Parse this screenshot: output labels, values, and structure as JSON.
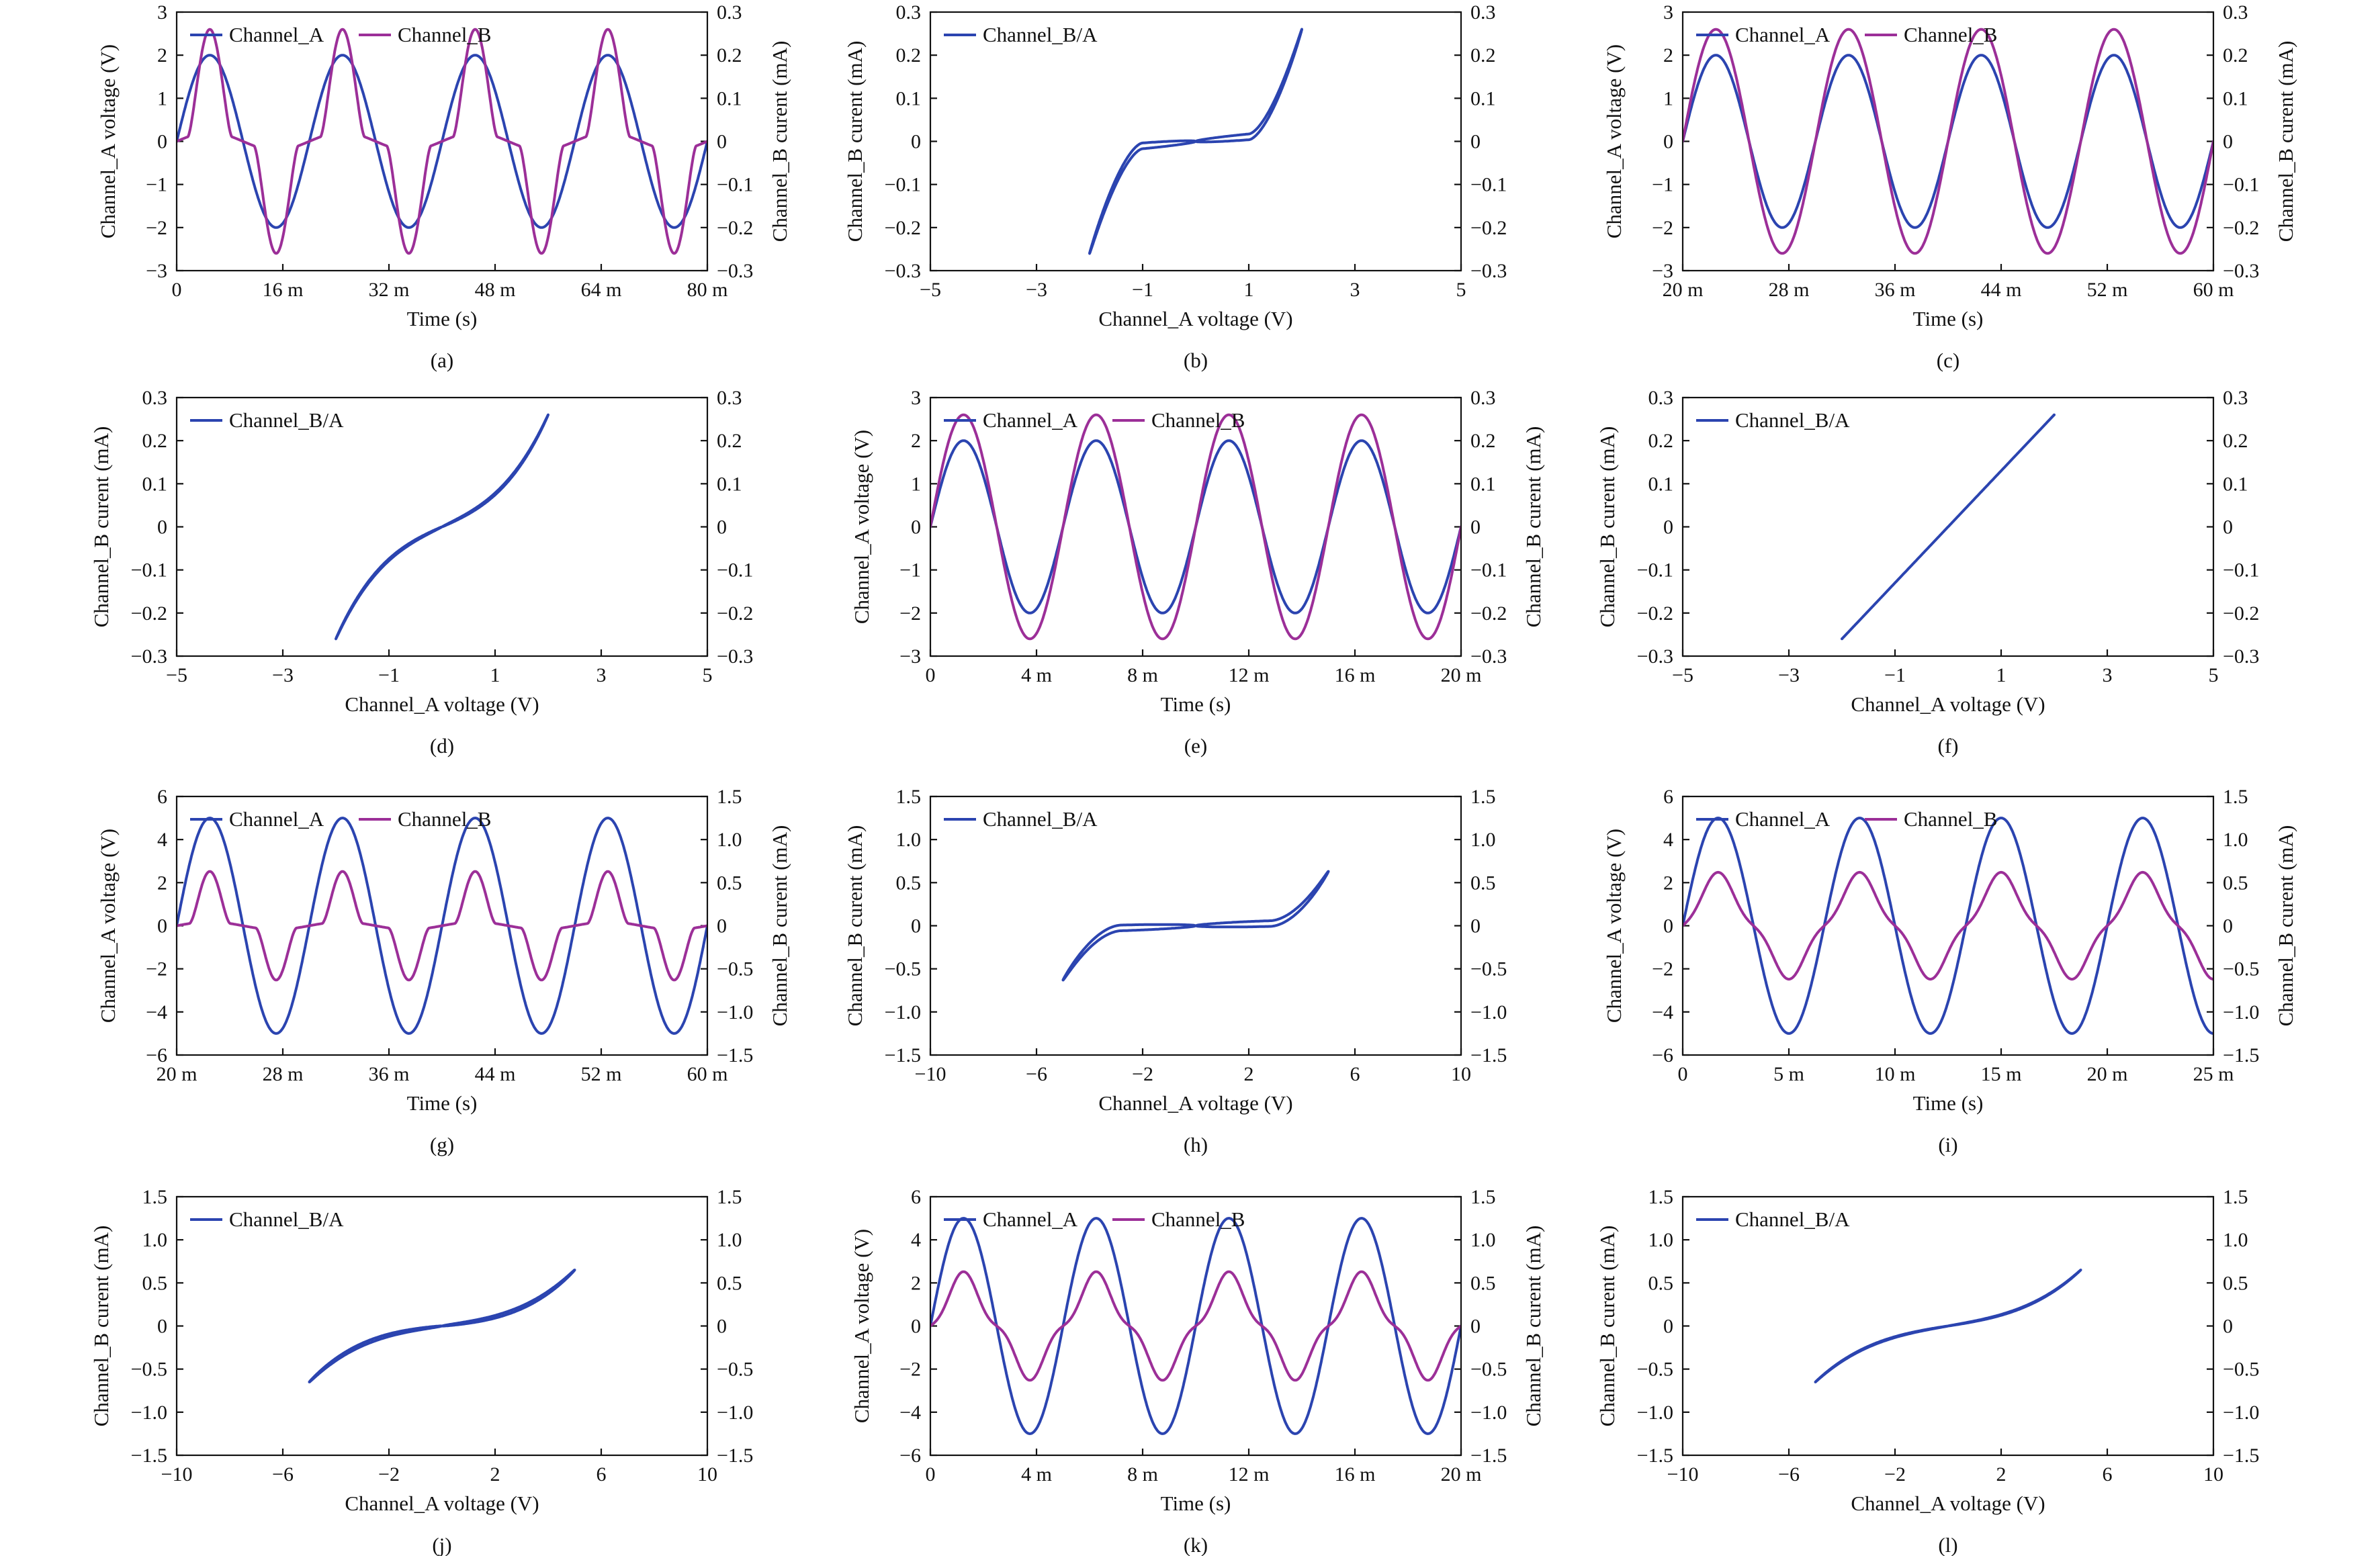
{
  "colors": {
    "channel_a": "#2b44b0",
    "channel_b": "#9c2f98"
  },
  "chart_data": [
    {
      "id": "a",
      "type": "line",
      "panel_label": "(a)",
      "xlabel": "Time (s)",
      "ylabel": "Channel_A voltage (V)",
      "y2label": "Channel_B curent (mA)",
      "xlim": [
        0,
        0.08
      ],
      "ylim": [
        -3,
        3
      ],
      "y2lim": [
        -0.3,
        0.3
      ],
      "xticks": [
        0,
        0.016,
        0.032,
        0.048,
        0.064,
        0.08
      ],
      "xtick_labels": [
        "0",
        "16 m",
        "32 m",
        "48 m",
        "64 m",
        "80 m"
      ],
      "yticks": [
        -3,
        -2,
        -1,
        0,
        1,
        2,
        3
      ],
      "ytick_labels": [
        "−3",
        "−2",
        "−1",
        "0",
        "1",
        "2",
        "3"
      ],
      "y2ticks": [
        -0.3,
        -0.2,
        -0.1,
        0,
        0.1,
        0.2,
        0.3
      ],
      "y2tick_labels": [
        "−0.3",
        "−0.2",
        "−0.1",
        "0",
        "0.1",
        "0.2",
        "0.3"
      ],
      "legend": [
        "Channel_A",
        "Channel_B"
      ],
      "series": [
        {
          "name": "Channel_A",
          "axis": "left",
          "color_key": "channel_a",
          "amplitude": 2,
          "frequency": 50,
          "phase": 0,
          "shape": "sine"
        },
        {
          "name": "Channel_B",
          "axis": "right",
          "color_key": "channel_b",
          "amplitude": 0.26,
          "frequency": 50,
          "phase": 0,
          "shape": "diode",
          "threshold": 1.0,
          "exponent": 1.6
        }
      ]
    },
    {
      "id": "b",
      "type": "xy",
      "panel_label": "(b)",
      "xlabel": "Channel_A voltage (V)",
      "ylabel": "Channel_B curent (mA)",
      "xlim": [
        -5,
        5
      ],
      "ylim": [
        -0.3,
        0.3
      ],
      "y2lim": [
        -0.3,
        0.3
      ],
      "xticks": [
        -5,
        -3,
        -1,
        1,
        3,
        5
      ],
      "xtick_labels": [
        "−5",
        "−3",
        "−1",
        "1",
        "3",
        "5"
      ],
      "yticks": [
        -0.3,
        -0.2,
        -0.1,
        0,
        0.1,
        0.2,
        0.3
      ],
      "ytick_labels": [
        "−0.3",
        "−0.2",
        "−0.1",
        "0",
        "0.1",
        "0.2",
        "0.3"
      ],
      "y2ticks": [
        -0.3,
        -0.2,
        -0.1,
        0,
        0.1,
        0.2,
        0.3
      ],
      "y2tick_labels": [
        "−0.3",
        "−0.2",
        "−0.1",
        "0",
        "0.1",
        "0.2",
        "0.3"
      ],
      "legend": [
        "Channel_B/A"
      ],
      "series": [
        {
          "name": "Channel_B/A",
          "axis": "left",
          "color_key": "channel_a",
          "vmax": 2,
          "imax": 0.26,
          "shape": "diode",
          "threshold": 1.0,
          "exponent": 1.6,
          "loop": 0.35
        }
      ]
    },
    {
      "id": "c",
      "type": "line",
      "panel_label": "(c)",
      "xlabel": "Time (s)",
      "ylabel": "Channel_A voltage (V)",
      "y2label": "Channel_B curent (mA)",
      "xlim": [
        0.02,
        0.06
      ],
      "ylim": [
        -3,
        3
      ],
      "y2lim": [
        -0.3,
        0.3
      ],
      "xticks": [
        0.02,
        0.028,
        0.036,
        0.044,
        0.052,
        0.06
      ],
      "xtick_labels": [
        "20 m",
        "28 m",
        "36 m",
        "44 m",
        "52 m",
        "60 m"
      ],
      "yticks": [
        -3,
        -2,
        -1,
        0,
        1,
        2,
        3
      ],
      "ytick_labels": [
        "−3",
        "−2",
        "−1",
        "0",
        "1",
        "2",
        "3"
      ],
      "y2ticks": [
        -0.3,
        -0.2,
        -0.1,
        0,
        0.1,
        0.2,
        0.3
      ],
      "y2tick_labels": [
        "−0.3",
        "−0.2",
        "−0.1",
        "0",
        "0.1",
        "0.2",
        "0.3"
      ],
      "legend": [
        "Channel_A",
        "Channel_B"
      ],
      "series": [
        {
          "name": "Channel_A",
          "axis": "left",
          "color_key": "channel_a",
          "amplitude": 2,
          "frequency": 100,
          "phase": 0,
          "shape": "sine"
        },
        {
          "name": "Channel_B",
          "axis": "right",
          "color_key": "channel_b",
          "amplitude": 0.26,
          "frequency": 100,
          "phase": 0,
          "shape": "sine"
        }
      ]
    },
    {
      "id": "d",
      "type": "xy",
      "panel_label": "(d)",
      "xlabel": "Channel_A voltage (V)",
      "ylabel": "Channel_B curent (mA)",
      "xlim": [
        -5,
        5
      ],
      "ylim": [
        -0.3,
        0.3
      ],
      "y2lim": [
        -0.3,
        0.3
      ],
      "xticks": [
        -5,
        -3,
        -1,
        1,
        3,
        5
      ],
      "xtick_labels": [
        "−5",
        "−3",
        "−1",
        "1",
        "3",
        "5"
      ],
      "yticks": [
        -0.3,
        -0.2,
        -0.1,
        0,
        0.1,
        0.2,
        0.3
      ],
      "ytick_labels": [
        "−0.3",
        "−0.2",
        "−0.1",
        "0",
        "0.1",
        "0.2",
        "0.3"
      ],
      "y2ticks": [
        -0.3,
        -0.2,
        -0.1,
        0,
        0.1,
        0.2,
        0.3
      ],
      "y2tick_labels": [
        "−0.3",
        "−0.2",
        "−0.1",
        "0",
        "0.1",
        "0.2",
        "0.3"
      ],
      "legend": [
        "Channel_B/A"
      ],
      "series": [
        {
          "name": "Channel_B/A",
          "axis": "left",
          "color_key": "channel_a",
          "vmax": 2,
          "imax": 0.26,
          "shape": "cubic",
          "linear_part": 0.45,
          "loop": 0.12
        }
      ]
    },
    {
      "id": "e",
      "type": "line",
      "panel_label": "(e)",
      "xlabel": "Time (s)",
      "ylabel": "Channel_A voltage (V)",
      "y2label": "Channel_B curent (mA)",
      "xlim": [
        0,
        0.02
      ],
      "ylim": [
        -3,
        3
      ],
      "y2lim": [
        -0.3,
        0.3
      ],
      "xticks": [
        0,
        0.004,
        0.008,
        0.012,
        0.016,
        0.02
      ],
      "xtick_labels": [
        "0",
        "4 m",
        "8 m",
        "12 m",
        "16 m",
        "20 m"
      ],
      "yticks": [
        -3,
        -2,
        -1,
        0,
        1,
        2,
        3
      ],
      "ytick_labels": [
        "−3",
        "−2",
        "−1",
        "0",
        "1",
        "2",
        "3"
      ],
      "y2ticks": [
        -0.3,
        -0.2,
        -0.1,
        0,
        0.1,
        0.2,
        0.3
      ],
      "y2tick_labels": [
        "−0.3",
        "−0.2",
        "−0.1",
        "0",
        "0.1",
        "0.2",
        "0.3"
      ],
      "legend": [
        "Channel_A",
        "Channel_B"
      ],
      "series": [
        {
          "name": "Channel_A",
          "axis": "left",
          "color_key": "channel_a",
          "amplitude": 2,
          "frequency": 200,
          "phase": 0,
          "shape": "sine"
        },
        {
          "name": "Channel_B",
          "axis": "right",
          "color_key": "channel_b",
          "amplitude": 0.26,
          "frequency": 200,
          "phase": 0,
          "shape": "sine"
        }
      ]
    },
    {
      "id": "f",
      "type": "xy",
      "panel_label": "(f)",
      "xlabel": "Channel_A voltage (V)",
      "ylabel": "Channel_B curent (mA)",
      "xlim": [
        -5,
        5
      ],
      "ylim": [
        -0.3,
        0.3
      ],
      "y2lim": [
        -0.3,
        0.3
      ],
      "xticks": [
        -5,
        -3,
        -1,
        1,
        3,
        5
      ],
      "xtick_labels": [
        "−5",
        "−3",
        "−1",
        "1",
        "3",
        "5"
      ],
      "yticks": [
        -0.3,
        -0.2,
        -0.1,
        0,
        0.1,
        0.2,
        0.3
      ],
      "ytick_labels": [
        "−0.3",
        "−0.2",
        "−0.1",
        "0",
        "0.1",
        "0.2",
        "0.3"
      ],
      "y2ticks": [
        -0.3,
        -0.2,
        -0.1,
        0,
        0.1,
        0.2,
        0.3
      ],
      "y2tick_labels": [
        "−0.3",
        "−0.2",
        "−0.1",
        "0",
        "0.1",
        "0.2",
        "0.3"
      ],
      "legend": [
        "Channel_B/A"
      ],
      "series": [
        {
          "name": "Channel_B/A",
          "axis": "left",
          "color_key": "channel_a",
          "vmax": 2,
          "imax": 0.26,
          "shape": "linear",
          "loop": 0.0
        }
      ]
    },
    {
      "id": "g",
      "type": "line",
      "panel_label": "(g)",
      "xlabel": "Time (s)",
      "ylabel": "Channel_A voltage (V)",
      "y2label": "Channel_B curent (mA)",
      "xlim": [
        0.02,
        0.06
      ],
      "ylim": [
        -6,
        6
      ],
      "y2lim": [
        -1.5,
        1.5
      ],
      "xticks": [
        0.02,
        0.028,
        0.036,
        0.044,
        0.052,
        0.06
      ],
      "xtick_labels": [
        "20 m",
        "28 m",
        "36 m",
        "44 m",
        "52 m",
        "60 m"
      ],
      "yticks": [
        -6,
        -4,
        -2,
        0,
        2,
        4,
        6
      ],
      "ytick_labels": [
        "−6",
        "−4",
        "−2",
        "0",
        "2",
        "4",
        "6"
      ],
      "y2ticks": [
        -1.5,
        -1,
        -0.5,
        0,
        0.5,
        1,
        1.5
      ],
      "y2tick_labels": [
        "−1.5",
        "−1.0",
        "−0.5",
        "0",
        "0.5",
        "1.0",
        "1.5"
      ],
      "legend": [
        "Channel_A",
        "Channel_B"
      ],
      "series": [
        {
          "name": "Channel_A",
          "axis": "left",
          "color_key": "channel_a",
          "amplitude": 5,
          "frequency": 100,
          "phase": 0,
          "shape": "sine"
        },
        {
          "name": "Channel_B",
          "axis": "right",
          "color_key": "channel_b",
          "amplitude": 0.63,
          "frequency": 100,
          "phase": 0,
          "shape": "diode",
          "threshold": 2.8,
          "exponent": 1.8
        }
      ]
    },
    {
      "id": "h",
      "type": "xy",
      "panel_label": "(h)",
      "xlabel": "Channel_A voltage (V)",
      "ylabel": "Channel_B curent (mA)",
      "xlim": [
        -10,
        10
      ],
      "ylim": [
        -1.5,
        1.5
      ],
      "y2lim": [
        -1.5,
        1.5
      ],
      "xticks": [
        -10,
        -6,
        -2,
        2,
        6,
        10
      ],
      "xtick_labels": [
        "−10",
        "−6",
        "−2",
        "2",
        "6",
        "10"
      ],
      "yticks": [
        -1.5,
        -1,
        -0.5,
        0,
        0.5,
        1,
        1.5
      ],
      "ytick_labels": [
        "−1.5",
        "−1.0",
        "−0.5",
        "0",
        "0.5",
        "1.0",
        "1.5"
      ],
      "y2ticks": [
        -1.5,
        -1,
        -0.5,
        0,
        0.5,
        1,
        1.5
      ],
      "y2tick_labels": [
        "−1.5",
        "−1.0",
        "−0.5",
        "0",
        "0.5",
        "1.0",
        "1.5"
      ],
      "legend": [
        "Channel_B/A"
      ],
      "series": [
        {
          "name": "Channel_B/A",
          "axis": "left",
          "color_key": "channel_a",
          "vmax": 5,
          "imax": 0.63,
          "shape": "diode",
          "threshold": 2.8,
          "exponent": 1.8,
          "loop": 0.7
        }
      ]
    },
    {
      "id": "i",
      "type": "line",
      "panel_label": "(i)",
      "xlabel": "Time (s)",
      "ylabel": "Channel_A voltage (V)",
      "y2label": "Channel_B curent (mA)",
      "xlim": [
        0,
        0.025
      ],
      "ylim": [
        -6,
        6
      ],
      "y2lim": [
        -1.5,
        1.5
      ],
      "xticks": [
        0,
        0.005,
        0.01,
        0.015,
        0.02,
        0.025
      ],
      "xtick_labels": [
        "0",
        "5 m",
        "10 m",
        "15 m",
        "20 m",
        "25 m"
      ],
      "yticks": [
        -6,
        -4,
        -2,
        0,
        2,
        4,
        6
      ],
      "ytick_labels": [
        "−6",
        "−4",
        "−2",
        "0",
        "2",
        "4",
        "6"
      ],
      "y2ticks": [
        -1.5,
        -1,
        -0.5,
        0,
        0.5,
        1,
        1.5
      ],
      "y2tick_labels": [
        "−1.5",
        "−1.0",
        "−0.5",
        "0",
        "0.5",
        "1.0",
        "1.5"
      ],
      "legend": [
        "Channel_A",
        "Channel_B"
      ],
      "series": [
        {
          "name": "Channel_A",
          "axis": "left",
          "color_key": "channel_a",
          "amplitude": 5,
          "frequency": 150,
          "phase": 0,
          "shape": "sine"
        },
        {
          "name": "Channel_B",
          "axis": "right",
          "color_key": "channel_b",
          "amplitude": 0.62,
          "frequency": 150,
          "phase": 0,
          "shape": "cubic",
          "linear_part": 0.4
        }
      ]
    },
    {
      "id": "j",
      "type": "xy",
      "panel_label": "(j)",
      "xlabel": "Channel_A voltage (V)",
      "ylabel": "Channel_B curent (mA)",
      "xlim": [
        -10,
        10
      ],
      "ylim": [
        -1.5,
        1.5
      ],
      "y2lim": [
        -1.5,
        1.5
      ],
      "xticks": [
        -10,
        -6,
        -2,
        2,
        6,
        10
      ],
      "xtick_labels": [
        "−10",
        "−6",
        "−2",
        "2",
        "6",
        "10"
      ],
      "yticks": [
        -1.5,
        -1,
        -0.5,
        0,
        0.5,
        1,
        1.5
      ],
      "ytick_labels": [
        "−1.5",
        "−1.0",
        "−0.5",
        "0",
        "0.5",
        "1.0",
        "1.5"
      ],
      "y2ticks": [
        -1.5,
        -1,
        -0.5,
        0,
        0.5,
        1,
        1.5
      ],
      "y2tick_labels": [
        "−1.5",
        "−1.0",
        "−0.5",
        "0",
        "0.5",
        "1.0",
        "1.5"
      ],
      "legend": [
        "Channel_B/A"
      ],
      "series": [
        {
          "name": "Channel_B/A",
          "axis": "left",
          "color_key": "channel_a",
          "vmax": 5,
          "imax": 0.65,
          "shape": "cubic",
          "linear_part": 0.3,
          "loop": 0.35
        }
      ]
    },
    {
      "id": "k",
      "type": "line",
      "panel_label": "(k)",
      "xlabel": "Time (s)",
      "ylabel": "Channel_A voltage (V)",
      "y2label": "Channel_B curent (mA)",
      "xlim": [
        0,
        0.02
      ],
      "ylim": [
        -6,
        6
      ],
      "y2lim": [
        -1.5,
        1.5
      ],
      "xticks": [
        0,
        0.004,
        0.008,
        0.012,
        0.016,
        0.02
      ],
      "xtick_labels": [
        "0",
        "4 m",
        "8 m",
        "12 m",
        "16 m",
        "20 m"
      ],
      "yticks": [
        -6,
        -4,
        -2,
        0,
        2,
        4,
        6
      ],
      "ytick_labels": [
        "−6",
        "−4",
        "−2",
        "0",
        "2",
        "4",
        "6"
      ],
      "y2ticks": [
        -1.5,
        -1,
        -0.5,
        0,
        0.5,
        1,
        1.5
      ],
      "y2tick_labels": [
        "−1.5",
        "−1.0",
        "−0.5",
        "0",
        "0.5",
        "1.0",
        "1.5"
      ],
      "legend": [
        "Channel_A",
        "Channel_B"
      ],
      "series": [
        {
          "name": "Channel_A",
          "axis": "left",
          "color_key": "channel_a",
          "amplitude": 5,
          "frequency": 200,
          "phase": 0,
          "shape": "sine"
        },
        {
          "name": "Channel_B",
          "axis": "right",
          "color_key": "channel_b",
          "amplitude": 0.63,
          "frequency": 200,
          "phase": 0,
          "shape": "cubic",
          "linear_part": 0.3
        }
      ]
    },
    {
      "id": "l",
      "type": "xy",
      "panel_label": "(l)",
      "xlabel": "Channel_A voltage (V)",
      "ylabel": "Channel_B curent (mA)",
      "xlim": [
        -10,
        10
      ],
      "ylim": [
        -1.5,
        1.5
      ],
      "y2lim": [
        -1.5,
        1.5
      ],
      "xticks": [
        -10,
        -6,
        -2,
        2,
        6,
        10
      ],
      "xtick_labels": [
        "−10",
        "−6",
        "−2",
        "2",
        "6",
        "10"
      ],
      "yticks": [
        -1.5,
        -1,
        -0.5,
        0,
        0.5,
        1,
        1.5
      ],
      "ytick_labels": [
        "−1.5",
        "−1.0",
        "−0.5",
        "0",
        "0.5",
        "1.0",
        "1.5"
      ],
      "y2ticks": [
        -1.5,
        -1,
        -0.5,
        0,
        0.5,
        1,
        1.5
      ],
      "y2tick_labels": [
        "−1.5",
        "−1.0",
        "−0.5",
        "0",
        "0.5",
        "1.0",
        "1.5"
      ],
      "legend": [
        "Channel_B/A"
      ],
      "series": [
        {
          "name": "Channel_B/A",
          "axis": "left",
          "color_key": "channel_a",
          "vmax": 5,
          "imax": 0.65,
          "shape": "cubic",
          "linear_part": 0.4,
          "loop": 0.12
        }
      ]
    }
  ]
}
